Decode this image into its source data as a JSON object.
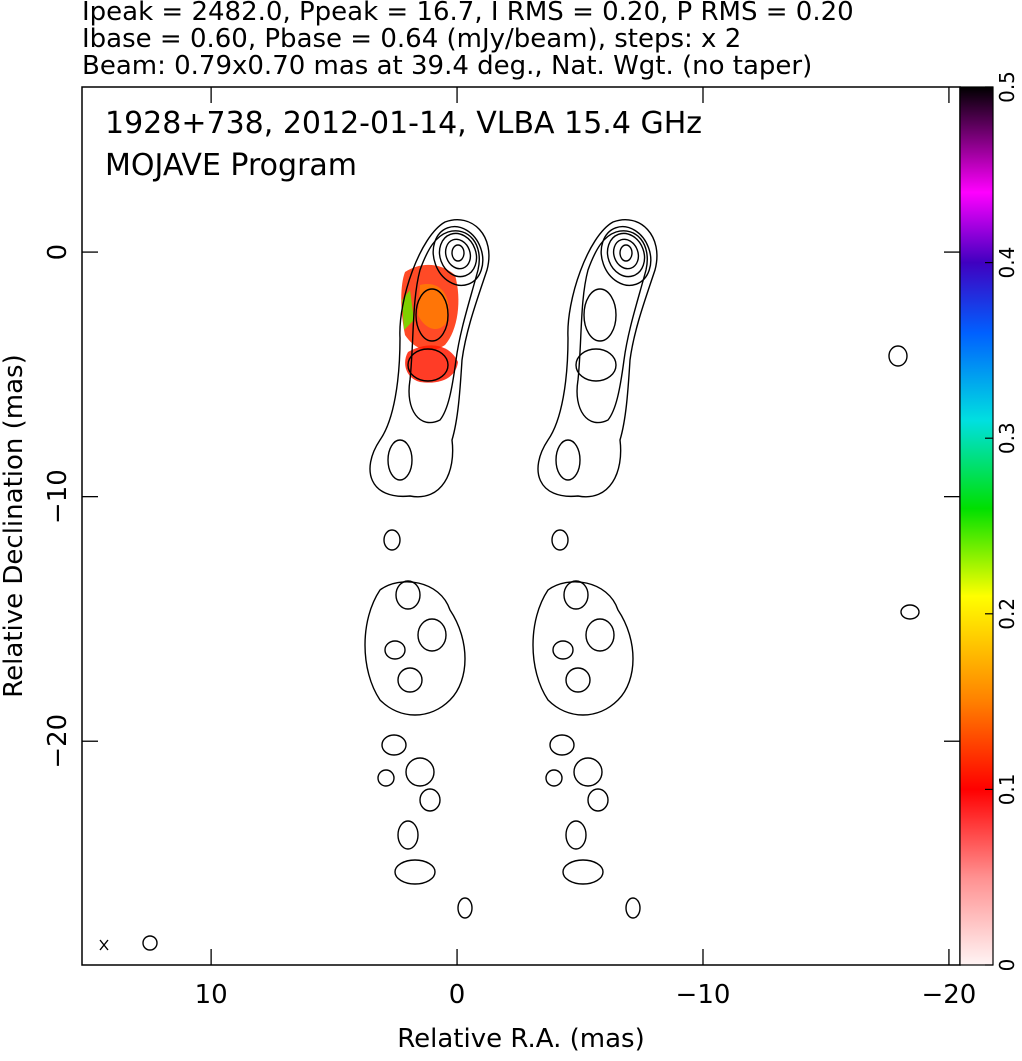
{
  "chart_data": {
    "type": "contour-map",
    "header": [
      "Ipeak = 2482.0, Ppeak = 16.7, I RMS = 0.20, P RMS = 0.20",
      "Ibase = 0.60, Pbase = 0.64 (mJy/beam), steps: x 2",
      "Beam: 0.79x0.70 mas at 39.4 deg., Nat. Wgt. (no taper)"
    ],
    "title": "1928+738, 2012-01-14, VLBA 15.4 GHz",
    "subtitle": "MOJAVE Program",
    "xlabel": "Relative R.A. (mas)",
    "ylabel": "Relative Declination (mas)",
    "xlim": [
      15.25,
      -20.45
    ],
    "ylim": [
      -29.15,
      6.75
    ],
    "xticks": [
      10,
      0,
      {
        "value": -10,
        "label": "−10"
      },
      {
        "value": -20,
        "label": "−20"
      }
    ],
    "yticks": [
      0,
      {
        "value": -10,
        "label": "−10"
      },
      {
        "value": -20,
        "label": "−20"
      }
    ],
    "colorbar": {
      "lim": [
        0,
        0.5
      ],
      "ticks": [
        0,
        0.1,
        0.2,
        0.3,
        0.4,
        0.5
      ]
    }
  }
}
